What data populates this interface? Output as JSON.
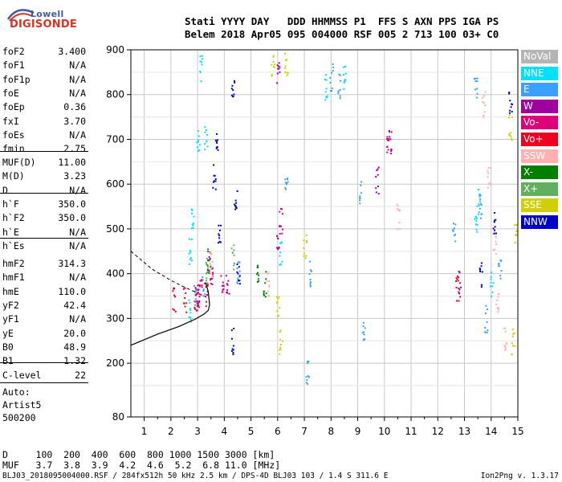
{
  "logo": {
    "line1": "Lowell",
    "line2": "DIGISONDE"
  },
  "header": {
    "line1": "Stati YYYY DAY   DDD HHMMSS P1  FFS S AXN PPS IGA PS",
    "line2": "Belem 2018 Apr05 095 004000 RSF 005 2 713 100 03+ C0"
  },
  "params_group1": [
    {
      "name": "foF2",
      "value": "3.400"
    },
    {
      "name": "foF1",
      "value": "N/A"
    },
    {
      "name": "foF1p",
      "value": "N/A"
    },
    {
      "name": "foE",
      "value": "N/A"
    },
    {
      "name": "foEp",
      "value": "0.36"
    },
    {
      "name": "fxI",
      "value": "3.70"
    },
    {
      "name": "foEs",
      "value": "N/A"
    },
    {
      "name": "fmin",
      "value": "2.75"
    }
  ],
  "params_group2": [
    {
      "name": "MUF(D)",
      "value": "11.00"
    },
    {
      "name": "M(D)",
      "value": "3.23"
    },
    {
      "name": "D",
      "value": "N/A"
    }
  ],
  "params_group3": [
    {
      "name": "h`F",
      "value": "350.0"
    },
    {
      "name": "h`F2",
      "value": "350.0"
    },
    {
      "name": "h`E",
      "value": "N/A"
    },
    {
      "name": "h`Es",
      "value": "N/A"
    }
  ],
  "params_group4": [
    {
      "name": "hmF2",
      "value": "314.3"
    },
    {
      "name": "hmF1",
      "value": "N/A"
    },
    {
      "name": "hmE",
      "value": "110.0"
    },
    {
      "name": "yF2",
      "value": "42.4"
    },
    {
      "name": "yF1",
      "value": "N/A"
    },
    {
      "name": "yE",
      "value": "20.0"
    },
    {
      "name": "B0",
      "value": "48.9"
    },
    {
      "name": "B1",
      "value": "1.32"
    }
  ],
  "params_group5": [
    {
      "name": "C-level",
      "value": "22"
    }
  ],
  "auto": {
    "line1": "Auto:",
    "line2": "Artist5",
    "line3": "500200"
  },
  "legend": [
    {
      "label": "NoVal",
      "color": "#b4b4b4"
    },
    {
      "label": "NNE",
      "color": "#00e0ff"
    },
    {
      "label": "E",
      "color": "#3aa0ff"
    },
    {
      "label": "W",
      "color": "#a000a0"
    },
    {
      "label": "Vo-",
      "color": "#e0007a"
    },
    {
      "label": "Vo+",
      "color": "#f00020"
    },
    {
      "label": "SSW",
      "color": "#ffb0b0"
    },
    {
      "label": "X-",
      "color": "#008000"
    },
    {
      "label": "X+",
      "color": "#60b060"
    },
    {
      "label": "SSE",
      "color": "#d0d000"
    },
    {
      "label": "NNW",
      "color": "#0000c8"
    }
  ],
  "muf_table": {
    "line1": "D     100  200  400  600  800 1000 1500 3000 [km]",
    "line2": "MUF   3.7  3.8  3.9  4.2  4.6  5.2  6.8 11.0 [MHz]"
  },
  "footer": {
    "left": "BLJ03_2018095004000.RSF / 284fx512h 50 kHz 2.5 km / DPS-4D BLJ03 103 / 1.4 S 311.6 E",
    "right": "Ion2Png v. 1.3.17"
  },
  "chart_data": {
    "type": "scatter",
    "title": "",
    "xlabel": "",
    "ylabel": "",
    "xlim": [
      0.5,
      15
    ],
    "ylim": [
      80,
      900
    ],
    "x_ticks": [
      1,
      2,
      3,
      4,
      5,
      6,
      7,
      8,
      9,
      10,
      11,
      12,
      13,
      14,
      15
    ],
    "y_ticks": [
      80,
      200,
      300,
      400,
      500,
      600,
      700,
      800,
      900
    ],
    "grid": true,
    "series": [
      {
        "name": "NNE",
        "color": "#00e0ff",
        "points": [
          [
            2.7,
            320
          ],
          [
            2.7,
            450
          ],
          [
            2.8,
            520
          ],
          [
            3.0,
            700
          ],
          [
            3.1,
            860
          ],
          [
            3.3,
            700
          ],
          [
            6.1,
            450
          ],
          [
            7.8,
            820
          ],
          [
            8.5,
            840
          ],
          [
            13.4,
            500
          ],
          [
            13.5,
            560
          ],
          [
            14.0,
            380
          ]
        ]
      },
      {
        "name": "E",
        "color": "#3aa0ff",
        "points": [
          [
            2.9,
            360
          ],
          [
            3.2,
            380
          ],
          [
            4.5,
            400
          ],
          [
            6.3,
            600
          ],
          [
            7.1,
            180
          ],
          [
            7.2,
            400
          ],
          [
            8.0,
            840
          ],
          [
            8.3,
            820
          ],
          [
            9.1,
            580
          ],
          [
            9.2,
            270
          ],
          [
            12.6,
            500
          ],
          [
            13.4,
            820
          ],
          [
            13.6,
            550
          ],
          [
            13.8,
            300
          ],
          [
            14.3,
            420
          ]
        ]
      },
      {
        "name": "W",
        "color": "#a000a0",
        "points": [
          [
            3.0,
            350
          ],
          [
            3.4,
            420
          ],
          [
            4.1,
            380
          ],
          [
            6.0,
            480
          ],
          [
            6.0,
            850
          ],
          [
            9.7,
            610
          ],
          [
            10.2,
            700
          ],
          [
            12.8,
            380
          ]
        ]
      },
      {
        "name": "Vo-",
        "color": "#e0007a",
        "points": [
          [
            2.9,
            345
          ],
          [
            3.1,
            360
          ],
          [
            3.5,
            400
          ],
          [
            3.9,
            380
          ],
          [
            6.1,
            520
          ],
          [
            10.1,
            700
          ]
        ]
      },
      {
        "name": "Vo+",
        "color": "#f00020",
        "points": [
          [
            2.1,
            340
          ],
          [
            2.5,
            345
          ],
          [
            3.0,
            350
          ],
          [
            3.3,
            355
          ],
          [
            12.7,
            370
          ]
        ]
      },
      {
        "name": "SSW",
        "color": "#ffb0b0",
        "points": [
          [
            3.5,
            420
          ],
          [
            5.6,
            380
          ],
          [
            10.5,
            530
          ],
          [
            13.7,
            780
          ],
          [
            13.9,
            620
          ],
          [
            14.1,
            470
          ],
          [
            14.2,
            340
          ],
          [
            14.5,
            260
          ]
        ]
      },
      {
        "name": "X-",
        "color": "#008000",
        "points": [
          [
            3.4,
            430
          ],
          [
            5.2,
            400
          ],
          [
            5.5,
            380
          ]
        ]
      },
      {
        "name": "X+",
        "color": "#60b060",
        "points": [
          [
            3.3,
            410
          ],
          [
            4.3,
            440
          ]
        ]
      },
      {
        "name": "SSE",
        "color": "#d0d000",
        "points": [
          [
            5.8,
            860
          ],
          [
            6.0,
            330
          ],
          [
            6.1,
            250
          ],
          [
            6.3,
            870
          ],
          [
            7.0,
            460
          ],
          [
            14.7,
            730
          ],
          [
            14.9,
            500
          ],
          [
            14.8,
            250
          ]
        ]
      },
      {
        "name": "NNW",
        "color": "#0000c8",
        "points": [
          [
            3.6,
            620
          ],
          [
            3.7,
            700
          ],
          [
            3.8,
            480
          ],
          [
            4.3,
            820
          ],
          [
            4.4,
            560
          ],
          [
            4.5,
            400
          ],
          [
            4.3,
            250
          ],
          [
            13.6,
            400
          ],
          [
            14.1,
            520
          ],
          [
            14.7,
            790
          ]
        ]
      }
    ],
    "profile_curve": [
      [
        0.5,
        240
      ],
      [
        1.5,
        265
      ],
      [
        2.3,
        282
      ],
      [
        2.9,
        298
      ],
      [
        3.25,
        310
      ],
      [
        3.4,
        318
      ],
      [
        3.45,
        330
      ],
      [
        3.4,
        360
      ],
      [
        3.3,
        380
      ]
    ],
    "dashed_curve": [
      [
        0.5,
        450
      ],
      [
        1.3,
        410
      ],
      [
        2.0,
        385
      ],
      [
        2.5,
        370
      ],
      [
        2.8,
        362
      ],
      [
        3.0,
        357
      ]
    ]
  }
}
